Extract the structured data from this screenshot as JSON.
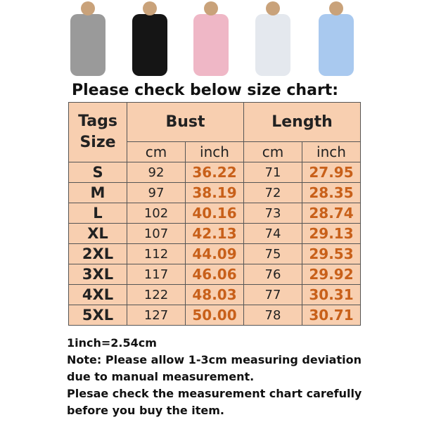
{
  "header": {
    "title": "Please check below size chart:"
  },
  "table": {
    "tag_header": "Tags\nSize",
    "group_headers": [
      "Bust",
      "Length"
    ],
    "unit_headers": [
      "cm",
      "inch",
      "cm",
      "inch"
    ],
    "rows": [
      [
        "S",
        "92",
        "36.22",
        "71",
        "27.95"
      ],
      [
        "M",
        "97",
        "38.19",
        "72",
        "28.35"
      ],
      [
        "L",
        "102",
        "40.16",
        "73",
        "28.74"
      ],
      [
        "XL",
        "107",
        "42.13",
        "74",
        "29.13"
      ],
      [
        "2XL",
        "112",
        "44.09",
        "75",
        "29.53"
      ],
      [
        "3XL",
        "117",
        "46.06",
        "76",
        "29.92"
      ],
      [
        "4XL",
        "122",
        "48.03",
        "77",
        "30.31"
      ],
      [
        "5XL",
        "127",
        "50.00",
        "78",
        "30.71"
      ]
    ]
  },
  "notes": [
    "1inch=2.54cm",
    "Note: Please allow 1-3cm measuring deviation due to manual measurement.",
    "Plesae check the measurement chart carefully before you buy the item."
  ]
}
